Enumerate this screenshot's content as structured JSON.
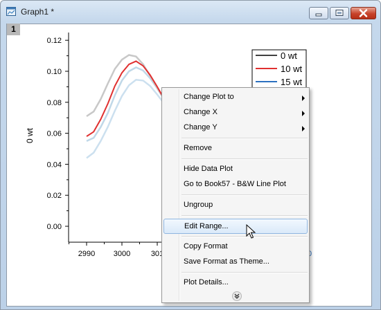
{
  "window": {
    "title": "Graph1 *",
    "layer_number": "1",
    "icon": "graph-window-icon",
    "controls": [
      "minimize-icon",
      "maximize-icon",
      "close-icon"
    ]
  },
  "chart_data": {
    "type": "line",
    "xlabel": "",
    "ylabel": "0 wt",
    "ylim": [
      -0.01,
      0.125
    ],
    "xlim": [
      2984,
      3060
    ],
    "yticks": [
      "0.00",
      "0.02",
      "0.04",
      "0.06",
      "0.08",
      "0.10",
      "0.12"
    ],
    "xticks": [
      "2990",
      "3000",
      "301"
    ],
    "grid": false,
    "legend_position": "top-right",
    "series": [
      {
        "name": "0 wt",
        "color": "#c8c8c8",
        "x": [
          2990,
          2992,
          2994,
          2996,
          2998,
          3000,
          3002,
          3004,
          3006,
          3008,
          3010,
          3012
        ],
        "values": [
          0.071,
          0.074,
          0.082,
          0.092,
          0.1015,
          0.1075,
          0.1105,
          0.1095,
          0.1045,
          0.097,
          0.089,
          0.082
        ]
      },
      {
        "name": "10 wt",
        "color": "#e03030",
        "x": [
          2990,
          2992,
          2994,
          2996,
          2998,
          3000,
          3002,
          3004,
          3006,
          3008,
          3010,
          3012
        ],
        "values": [
          0.058,
          0.061,
          0.069,
          0.079,
          0.0905,
          0.099,
          0.1045,
          0.1065,
          0.1035,
          0.0975,
          0.09,
          0.082
        ]
      },
      {
        "name": "15 wt",
        "color": "#c0d8e8",
        "x": [
          2990,
          2992,
          2994,
          2996,
          2998,
          3000,
          3002,
          3004,
          3006,
          3008,
          3010,
          3012
        ],
        "values": [
          0.055,
          0.057,
          0.064,
          0.073,
          0.0845,
          0.094,
          0.1,
          0.1025,
          0.1005,
          0.0955,
          0.089,
          0.0815
        ]
      },
      {
        "name": "",
        "color": "#cce0ef",
        "x": [
          2990,
          2992,
          2994,
          2996,
          2998,
          3000,
          3002,
          3004,
          3006,
          3008,
          3010,
          3012
        ],
        "values": [
          0.044,
          0.0475,
          0.055,
          0.064,
          0.0745,
          0.084,
          0.091,
          0.0945,
          0.094,
          0.0905,
          0.085,
          0.079
        ]
      }
    ],
    "legend_colors": [
      "#404040",
      "#e03030",
      "#2b70c0"
    ],
    "partial_right_tick": "0"
  },
  "context_menu": {
    "items": [
      {
        "label": "Change Plot to",
        "submenu": true
      },
      {
        "label": "Change X",
        "submenu": true
      },
      {
        "label": "Change Y",
        "submenu": true
      },
      {
        "label": "Remove",
        "submenu": false
      },
      {
        "label": "Hide Data Plot",
        "submenu": false
      },
      {
        "label": "Go to Book57 - B&W Line Plot",
        "submenu": false
      },
      {
        "label": "Ungroup",
        "submenu": false
      },
      {
        "label": "Edit Range...",
        "submenu": false,
        "highlighted": true
      },
      {
        "label": "Copy Format",
        "submenu": false
      },
      {
        "label": "Save Format as Theme...",
        "submenu": false
      },
      {
        "label": "Plot Details...",
        "submenu": false
      }
    ],
    "expand_icon": "double-chevron-down-icon"
  }
}
